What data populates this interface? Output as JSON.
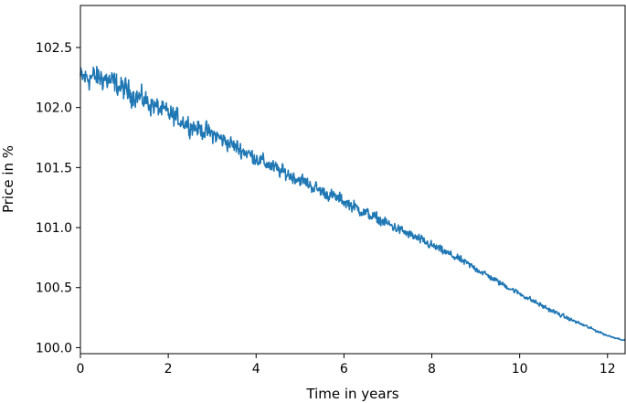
{
  "chart_data": {
    "type": "line",
    "title": "",
    "xlabel": "Time in years",
    "ylabel": "Price in %",
    "xlim": [
      0,
      12.4
    ],
    "ylim": [
      99.95,
      102.85
    ],
    "xticks": [
      0,
      2,
      4,
      6,
      8,
      10,
      12
    ],
    "xtick_labels": [
      "0",
      "2",
      "4",
      "6",
      "8",
      "10",
      "12"
    ],
    "yticks": [
      100.0,
      100.5,
      101.0,
      101.5,
      102.0,
      102.5
    ],
    "ytick_labels": [
      "100.0",
      "100.5",
      "101.0",
      "101.5",
      "102.0",
      "102.5"
    ],
    "grid": false,
    "legend": "none",
    "series": [
      {
        "color": "#1f77b4",
        "x": [
          0,
          0.5,
          1,
          1.5,
          2,
          2.5,
          3,
          3.5,
          4,
          4.5,
          5,
          5.5,
          6,
          6.5,
          7,
          7.5,
          8,
          8.5,
          9,
          9.5,
          10,
          10.5,
          11,
          11.5,
          12,
          12.4
        ],
        "y": [
          102.25,
          102.25,
          102.15,
          102.05,
          101.95,
          101.85,
          101.78,
          101.68,
          101.58,
          101.48,
          101.4,
          101.3,
          101.22,
          101.12,
          101.03,
          100.94,
          100.85,
          100.76,
          100.66,
          100.55,
          100.45,
          100.35,
          100.26,
          100.18,
          100.1,
          100.06
        ],
        "noise_amplitude": [
          0.25,
          0.26,
          0.24,
          0.22,
          0.2,
          0.19,
          0.18,
          0.17,
          0.16,
          0.15,
          0.14,
          0.13,
          0.13,
          0.12,
          0.11,
          0.1,
          0.09,
          0.08,
          0.07,
          0.06,
          0.05,
          0.05,
          0.04,
          0.03,
          0.02,
          0.01
        ]
      }
    ]
  }
}
